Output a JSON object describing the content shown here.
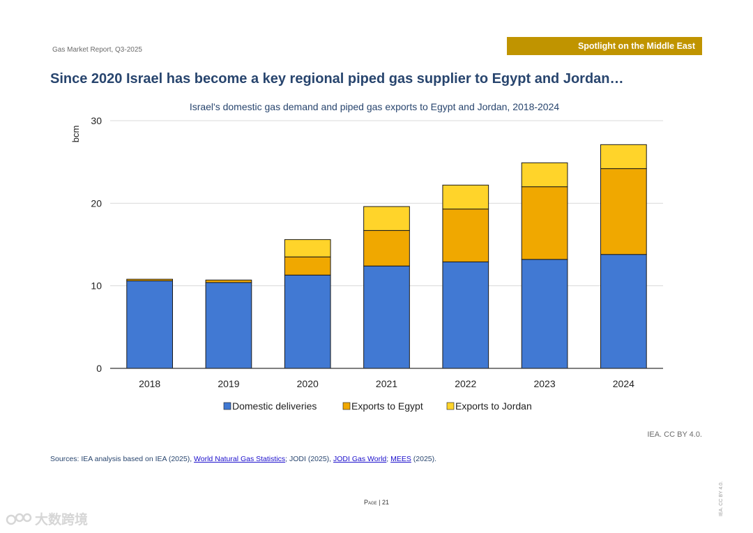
{
  "header": {
    "report_name": "Gas Market Report, Q3-2025",
    "section_label": "Spotlight on the Middle East",
    "section_color": "#c09400"
  },
  "page_title": "Since 2020 Israel has become a key regional piped gas supplier to Egypt and Jordan…",
  "chart_data": {
    "type": "bar",
    "stacked": true,
    "title": "Israel's domestic gas demand and piped gas exports to Egypt and Jordan, 2018-2024",
    "xlabel": "",
    "ylabel": "bcm",
    "ylim": [
      0,
      30
    ],
    "yticks": [
      0,
      10,
      20,
      30
    ],
    "categories": [
      "2018",
      "2019",
      "2020",
      "2021",
      "2022",
      "2023",
      "2024"
    ],
    "series": [
      {
        "name": "Domestic deliveries",
        "color": "#4179d3",
        "values": [
          10.6,
          10.4,
          11.3,
          12.4,
          12.9,
          13.2,
          13.8
        ]
      },
      {
        "name": "Exports to Egypt",
        "color": "#f0a800",
        "values": [
          0.2,
          0.3,
          2.2,
          4.3,
          6.4,
          8.8,
          10.4
        ]
      },
      {
        "name": "Exports to Jordan",
        "color": "#ffd42a",
        "values": [
          0.0,
          0.0,
          2.1,
          2.9,
          2.9,
          2.9,
          2.9
        ]
      }
    ],
    "legend_position": "bottom",
    "grid": true
  },
  "credit": "IEA. CC BY 4.0.",
  "sources": {
    "prefix": "Sources: IEA analysis based on IEA (2025), ",
    "link1": "World Natural Gas Statistics",
    "mid1": "; JODI (2025), ",
    "link2": "JODI Gas World",
    "mid2": "; ",
    "link3": "MEES",
    "suffix": " (2025)."
  },
  "page": {
    "label": "Page",
    "separator": " | ",
    "number": "21"
  },
  "side_credit": "IEA. CC BY 4.0.",
  "watermark": "大数跨境"
}
